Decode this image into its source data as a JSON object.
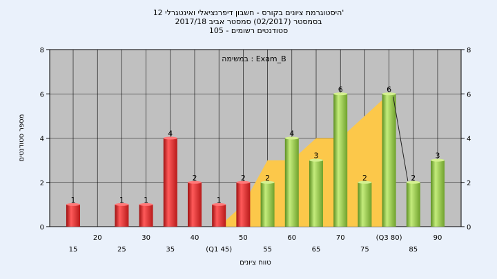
{
  "chart_data": {
    "type": "bar",
    "title_lines": [
      "היסטוגרמת ציונים בקורס - חשבון דיפרנציאלי ואינטגרלי 12'",
      "בסמסטר  (02/2017)  סמסטר אביב 2017/18",
      "סטודנטים רשומים - 105"
    ],
    "annotation": "במשימה : Exam_B",
    "xlabel": "טווח ציונים",
    "ylabel": "מספר סטודנטים",
    "ylim": [
      0,
      8
    ],
    "yticks": [
      0,
      2,
      4,
      6,
      8
    ],
    "grid": true,
    "x_tick_labels": [
      "15",
      "20",
      "25",
      "30",
      "35",
      "40",
      "(Q1 45)",
      "50",
      "55",
      "60",
      "65",
      "70",
      "75",
      "(Q3 80)",
      "85",
      "90"
    ],
    "bins": [
      "15",
      "20",
      "25",
      "30",
      "35",
      "40",
      "45",
      "50",
      "55",
      "60",
      "65",
      "70",
      "75",
      "80",
      "85",
      "90"
    ],
    "values": [
      1,
      0,
      1,
      1,
      4,
      2,
      1,
      2,
      2,
      4,
      3,
      6,
      2,
      6,
      2,
      3
    ],
    "bar_groups": [
      "red",
      "red",
      "red",
      "red",
      "red",
      "red",
      "red",
      "red",
      "green",
      "green",
      "green",
      "green",
      "green",
      "green",
      "green",
      "green"
    ],
    "box_area": {
      "from_bin": 6,
      "to_bin": 13,
      "values_at_bins": [
        0,
        1,
        3,
        3,
        4,
        4,
        5,
        6
      ]
    },
    "whisker_line": {
      "from_bin": 13,
      "to_bin": 14,
      "from_value": 6,
      "to_value": 2
    },
    "colors": {
      "background": "#eaf1fb",
      "plot_area": "#c0c0c0",
      "red_bar": "#e23030",
      "green_bar": "#9ccc4a",
      "box_fill": "#fcc84a"
    }
  }
}
